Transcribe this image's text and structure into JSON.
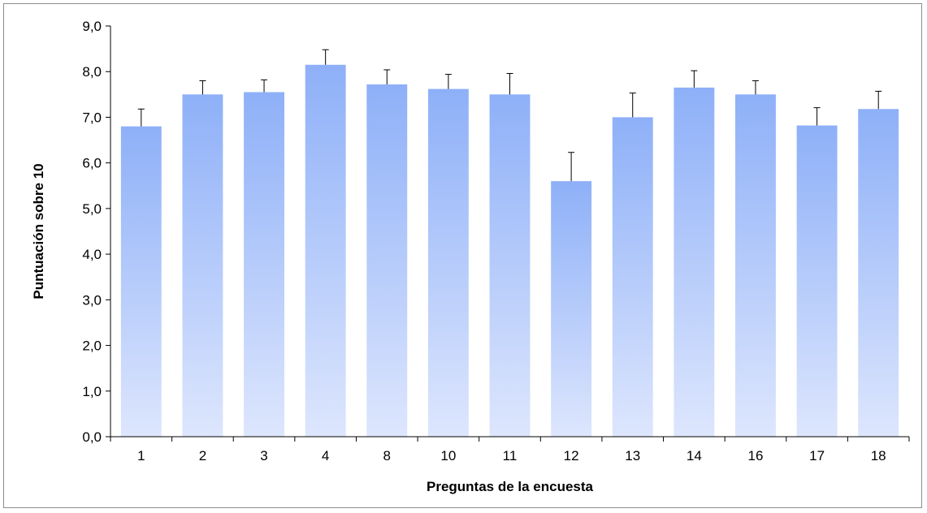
{
  "chart_data": {
    "type": "bar",
    "title": "",
    "xlabel": "Preguntas de la encuesta",
    "ylabel": "Puntuación sobre 10",
    "categories": [
      "1",
      "2",
      "3",
      "4",
      "8",
      "10",
      "11",
      "12",
      "13",
      "14",
      "16",
      "17",
      "18"
    ],
    "values": [
      6.8,
      7.5,
      7.55,
      8.15,
      7.72,
      7.62,
      7.5,
      5.6,
      7.0,
      7.65,
      7.5,
      6.82,
      7.18
    ],
    "error_upper": [
      0.38,
      0.3,
      0.27,
      0.33,
      0.32,
      0.32,
      0.46,
      0.63,
      0.53,
      0.37,
      0.3,
      0.39,
      0.39
    ],
    "ylim": [
      0,
      9
    ],
    "yticks": [
      "0,0",
      "1,0",
      "2,0",
      "3,0",
      "4,0",
      "5,0",
      "6,0",
      "7,0",
      "8,0",
      "9,0"
    ],
    "grid": false,
    "legend": "none",
    "colors": {
      "bar_top": "#8eb0f8",
      "bar_bottom": "#dde6fd",
      "axis": "#000000",
      "error_bar": "#000000"
    }
  }
}
